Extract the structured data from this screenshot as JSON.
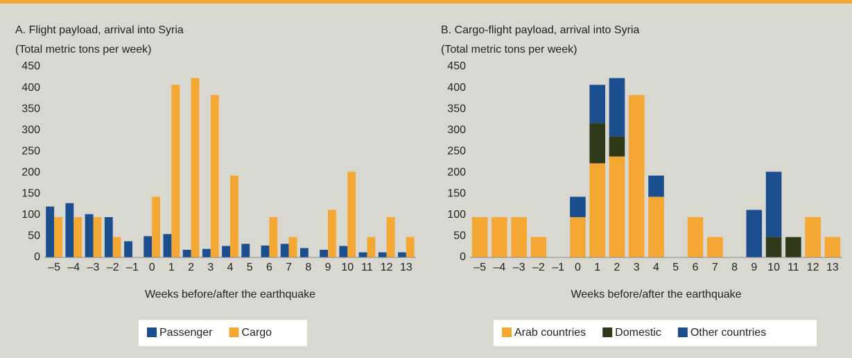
{
  "chart_data": [
    {
      "type": "bar",
      "title": "A. Flight payload, arrival into Syria",
      "subtitle": "(Total metric tons per week)",
      "x_label": "Weeks before/after the earthquake",
      "categories": [
        "–5",
        "–4",
        "–3",
        "–2",
        "–1",
        "0",
        "1",
        "2",
        "3",
        "4",
        "5",
        "6",
        "7",
        "8",
        "9",
        "10",
        "11",
        "12",
        "13"
      ],
      "series": [
        {
          "name": "Passenger",
          "color": "#1a4e8f",
          "values": [
            120,
            128,
            102,
            95,
            38,
            50,
            55,
            18,
            20,
            27,
            32,
            28,
            32,
            22,
            18,
            27,
            12,
            12,
            12
          ]
        },
        {
          "name": "Cargo",
          "color": "#f5a733",
          "values": [
            95,
            95,
            95,
            48,
            0,
            143,
            407,
            423,
            383,
            193,
            0,
            95,
            48,
            0,
            112,
            202,
            48,
            95,
            48
          ]
        }
      ],
      "ylim": [
        0,
        450
      ],
      "yticks": [
        0,
        50,
        100,
        150,
        200,
        250,
        300,
        350,
        400,
        450
      ]
    },
    {
      "type": "bar",
      "stacked": true,
      "title": "B. Cargo-flight payload, arrival into Syria",
      "subtitle": "(Total metric tons per week)",
      "x_label": "Weeks before/after the earthquake",
      "categories": [
        "–5",
        "–4",
        "–3",
        "–2",
        "–1",
        "0",
        "1",
        "2",
        "3",
        "4",
        "5",
        "6",
        "7",
        "8",
        "9",
        "10",
        "11",
        "12",
        "13"
      ],
      "series": [
        {
          "name": "Arab countries",
          "color": "#f5a733",
          "values": [
            95,
            95,
            95,
            48,
            0,
            95,
            222,
            238,
            383,
            143,
            0,
            95,
            48,
            0,
            0,
            0,
            0,
            95,
            48
          ]
        },
        {
          "name": "Domestic",
          "color": "#2e3a1a",
          "values": [
            0,
            0,
            0,
            0,
            0,
            0,
            95,
            47,
            0,
            0,
            0,
            0,
            0,
            0,
            0,
            48,
            48,
            0,
            0
          ]
        },
        {
          "name": "Other countries",
          "color": "#1a4e8f",
          "values": [
            0,
            0,
            0,
            0,
            0,
            48,
            90,
            138,
            0,
            50,
            0,
            0,
            0,
            0,
            112,
            154,
            0,
            0,
            0
          ]
        }
      ],
      "ylim": [
        0,
        450
      ],
      "yticks": [
        0,
        50,
        100,
        150,
        200,
        250,
        300,
        350,
        400,
        450
      ]
    }
  ]
}
